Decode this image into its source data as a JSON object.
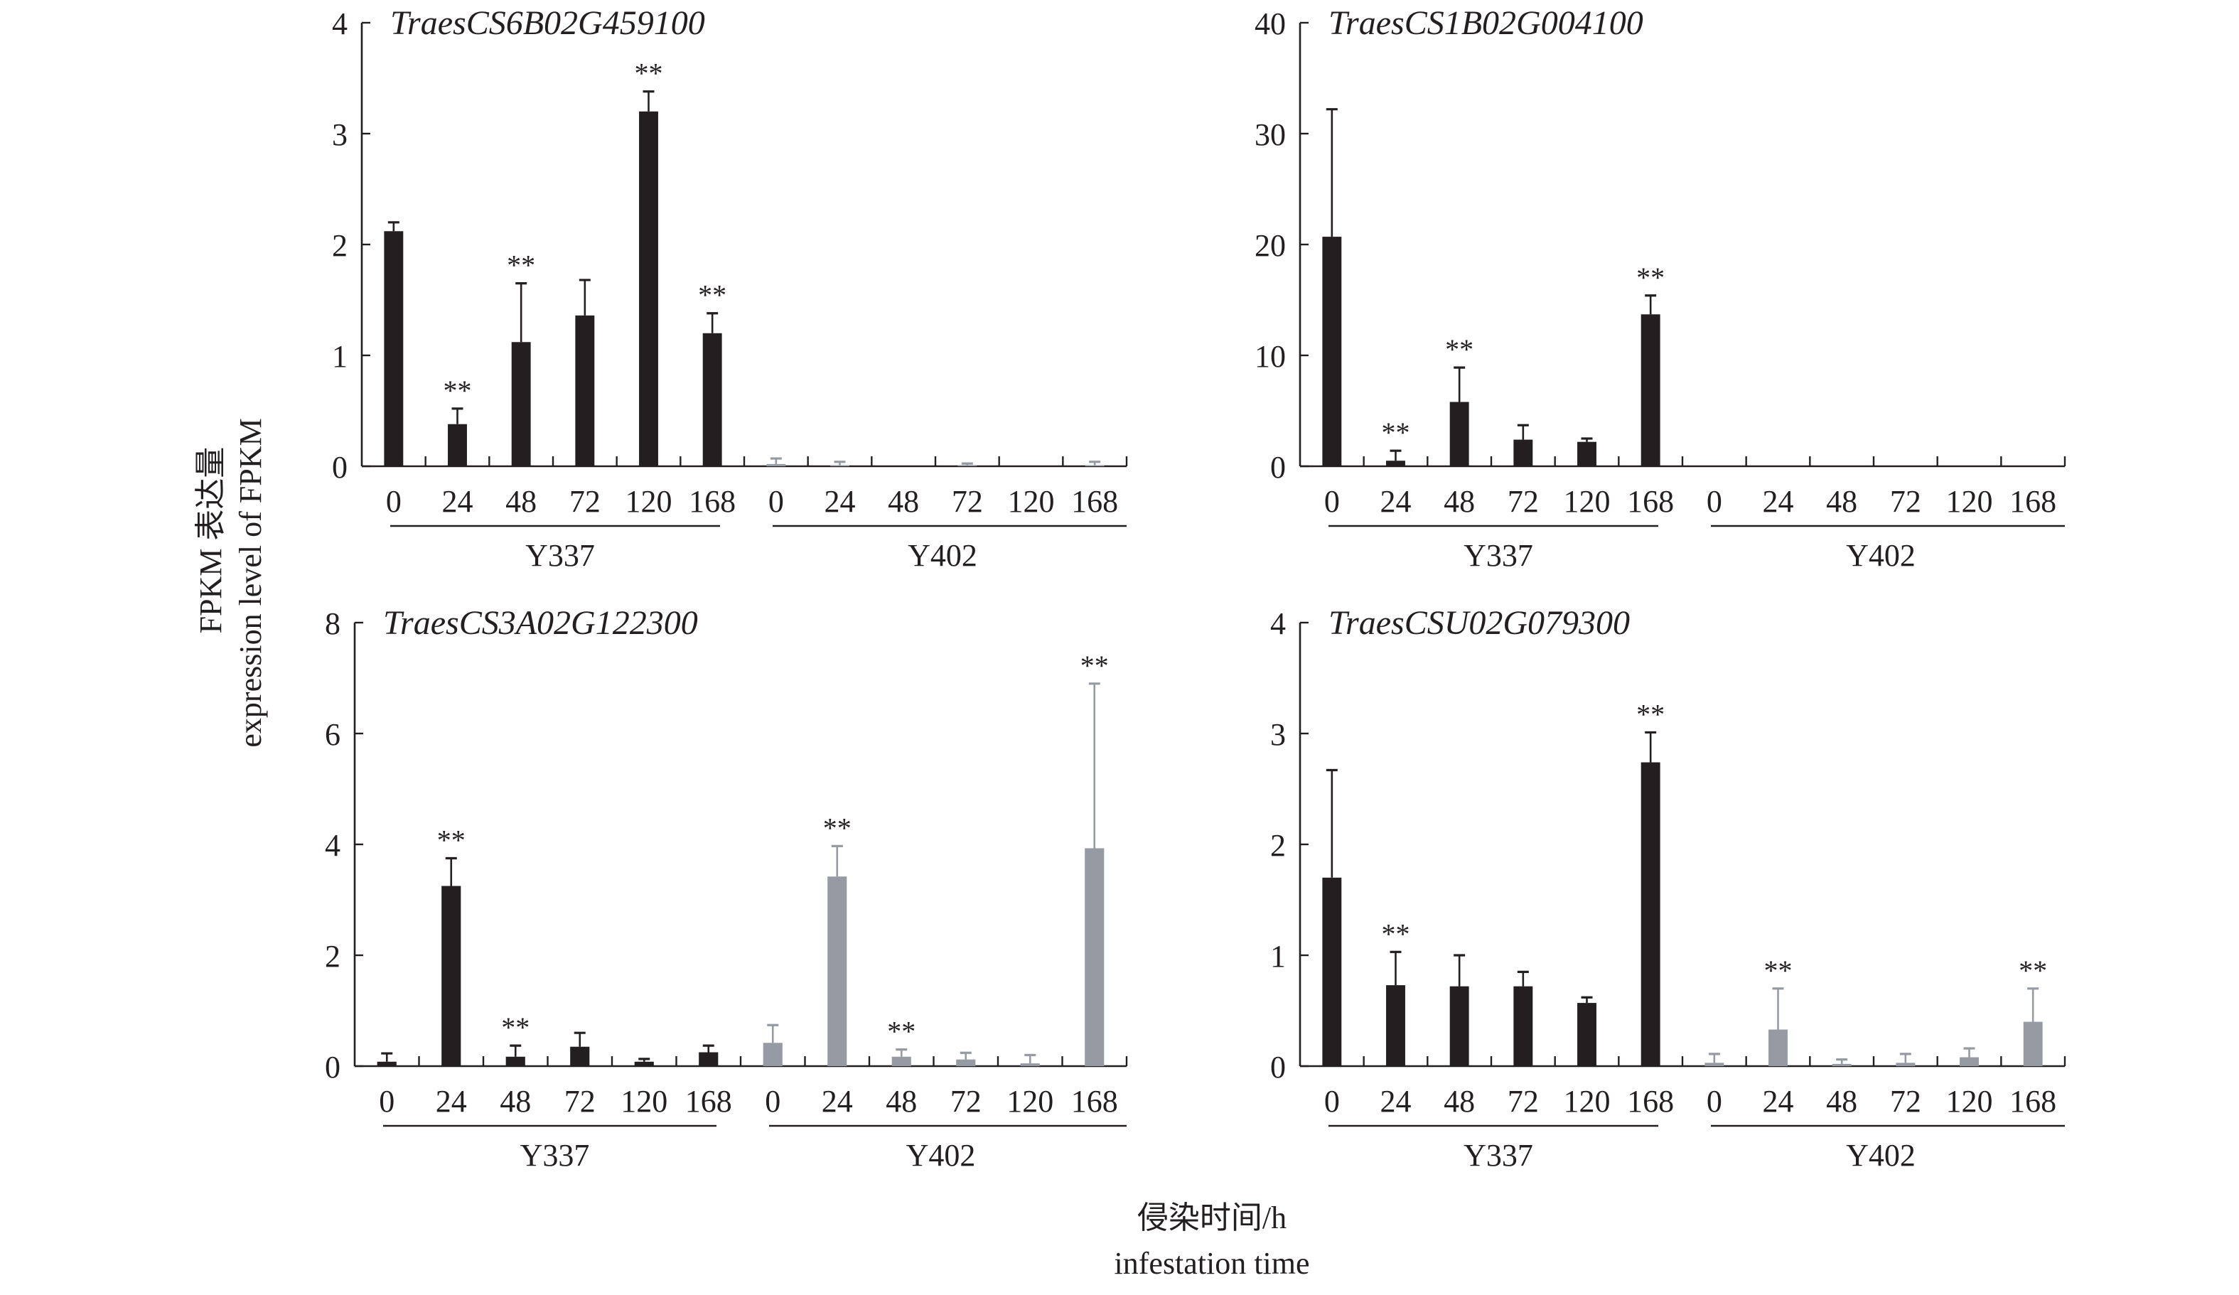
{
  "chart_data": [
    {
      "type": "bar",
      "title": "TraesCS6B02G459100",
      "categories": [
        "0",
        "24",
        "48",
        "72",
        "120",
        "168"
      ],
      "groups": [
        "Y337",
        "Y402"
      ],
      "ylim": [
        0,
        4
      ],
      "yticks": [
        0,
        1,
        2,
        3,
        4
      ],
      "series": [
        {
          "name": "Y337",
          "values": [
            2.12,
            0.38,
            1.12,
            1.36,
            3.2,
            1.2
          ],
          "errors": [
            0.08,
            0.14,
            0.53,
            0.32,
            0.18,
            0.18
          ],
          "significance": [
            "",
            "**",
            "**",
            "",
            "**",
            "**"
          ]
        },
        {
          "name": "Y402",
          "values": [
            0.02,
            0.01,
            0,
            0.005,
            0,
            0.01
          ],
          "errors": [
            0.05,
            0.03,
            0,
            0.02,
            0,
            0.03
          ],
          "significance": [
            "",
            "",
            "",
            "",
            "",
            ""
          ]
        }
      ]
    },
    {
      "type": "bar",
      "title": "TraesCS1B02G004100",
      "categories": [
        "0",
        "24",
        "48",
        "72",
        "120",
        "168"
      ],
      "groups": [
        "Y337",
        "Y402"
      ],
      "ylim": [
        0,
        40
      ],
      "yticks": [
        0,
        10,
        20,
        30,
        40
      ],
      "series": [
        {
          "name": "Y337",
          "values": [
            20.7,
            0.5,
            5.8,
            2.4,
            2.2,
            13.7
          ],
          "errors": [
            11.5,
            0.9,
            3.1,
            1.3,
            0.3,
            1.7
          ],
          "significance": [
            "",
            "**",
            "**",
            "",
            "",
            "**"
          ]
        },
        {
          "name": "Y402",
          "values": [
            0,
            0,
            0,
            0,
            0,
            0
          ],
          "errors": [
            0,
            0,
            0,
            0,
            0,
            0
          ],
          "significance": [
            "",
            "",
            "",
            "",
            "",
            ""
          ]
        }
      ]
    },
    {
      "type": "bar",
      "title": "TraesCS3A02G122300",
      "categories": [
        "0",
        "24",
        "48",
        "72",
        "120",
        "168"
      ],
      "groups": [
        "Y337",
        "Y402"
      ],
      "ylim": [
        0,
        8
      ],
      "yticks": [
        0,
        2,
        4,
        6,
        8
      ],
      "series": [
        {
          "name": "Y337",
          "values": [
            0.08,
            3.25,
            0.17,
            0.35,
            0.08,
            0.25
          ],
          "errors": [
            0.15,
            0.5,
            0.2,
            0.25,
            0.05,
            0.12
          ],
          "significance": [
            "",
            "**",
            "**",
            "",
            "",
            ""
          ]
        },
        {
          "name": "Y402",
          "values": [
            0.42,
            3.42,
            0.17,
            0.12,
            0.05,
            3.93
          ],
          "errors": [
            0.32,
            0.55,
            0.13,
            0.12,
            0.15,
            2.97
          ],
          "significance": [
            "",
            "**",
            "**",
            "",
            "",
            "**"
          ]
        }
      ]
    },
    {
      "type": "bar",
      "title": "TraesCSU02G079300",
      "categories": [
        "0",
        "24",
        "48",
        "72",
        "120",
        "168"
      ],
      "groups": [
        "Y337",
        "Y402"
      ],
      "ylim": [
        0,
        4
      ],
      "yticks": [
        0,
        1,
        2,
        3,
        4
      ],
      "series": [
        {
          "name": "Y337",
          "values": [
            1.7,
            0.73,
            0.72,
            0.72,
            0.57,
            2.74
          ],
          "errors": [
            0.97,
            0.3,
            0.28,
            0.13,
            0.05,
            0.27
          ],
          "significance": [
            "",
            "**",
            "",
            "",
            "",
            "**"
          ]
        },
        {
          "name": "Y402",
          "values": [
            0.03,
            0.33,
            0.02,
            0.03,
            0.08,
            0.4
          ],
          "errors": [
            0.08,
            0.37,
            0.04,
            0.08,
            0.08,
            0.3
          ],
          "significance": [
            "",
            "**",
            "",
            "",
            "",
            "**"
          ]
        }
      ]
    }
  ],
  "ylabel_cn": "FPKM 表达量",
  "ylabel_en": "expression level of FPKM",
  "xlabel_cn": "侵染时间/h",
  "xlabel_en": "infestation time",
  "colors": {
    "Y337": "#231f20",
    "Y402": "#959aa3",
    "axis": "#231f20"
  }
}
